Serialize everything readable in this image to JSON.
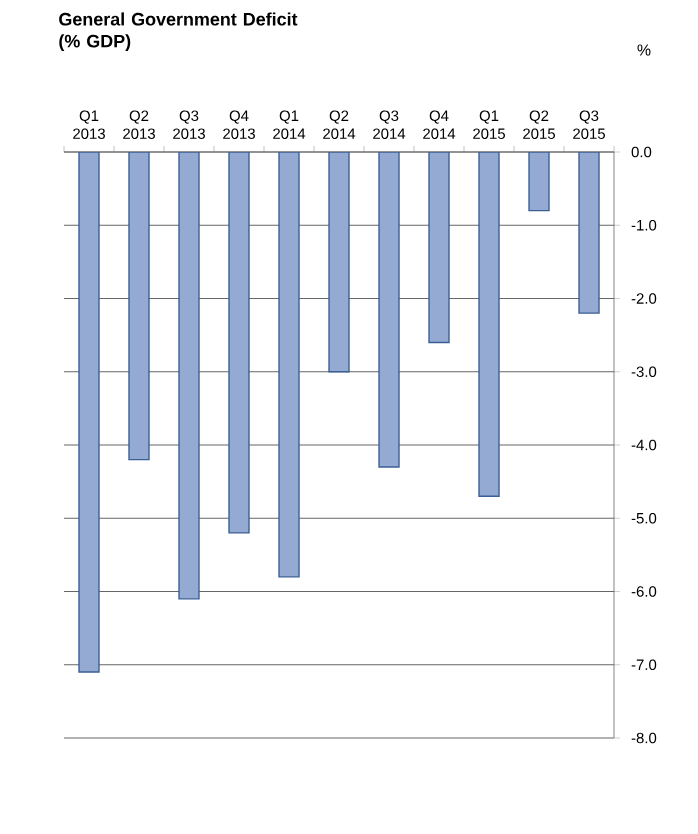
{
  "chart_data": {
    "type": "bar",
    "title": "General Government Deficit (% GDP)",
    "ylabel": "%",
    "categories": [
      "Q1 2013",
      "Q2 2013",
      "Q3 2013",
      "Q4 2013",
      "Q1 2014",
      "Q2 2014",
      "Q3 2014",
      "Q4 2014",
      "Q1 2015",
      "Q2 2015",
      "Q3 2015"
    ],
    "values": [
      -7.1,
      -4.2,
      -6.1,
      -5.2,
      -5.8,
      -3.0,
      -4.3,
      -2.6,
      -4.7,
      -0.8,
      -2.2
    ],
    "color": "#95aad3",
    "ylim": [
      -8,
      0
    ],
    "yticks": [
      {
        "value": 0,
        "label": "0.0"
      },
      {
        "value": -1,
        "label": "-1.0"
      },
      {
        "value": -2,
        "label": "-2.0"
      },
      {
        "value": -3,
        "label": "-3.0"
      },
      {
        "value": -4,
        "label": "-4.0"
      },
      {
        "value": -5,
        "label": "-5.0"
      },
      {
        "value": -6,
        "label": "-6.0"
      },
      {
        "value": -7,
        "label": "-7.0"
      },
      {
        "value": -8,
        "label": "-8.0"
      }
    ],
    "grid": "y"
  }
}
